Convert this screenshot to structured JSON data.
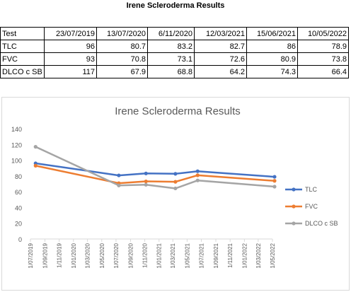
{
  "sheet": {
    "title": "Irene Scleroderma Results",
    "header": [
      "Test",
      "23/07/2019",
      "13/07/2020",
      "6/11/2020",
      "12/03/2021",
      "15/06/2021",
      "10/05/2022"
    ],
    "rows": [
      {
        "label": "TLC",
        "values": [
          "96",
          "80.7",
          "83.2",
          "82.7",
          "86",
          "78.9"
        ]
      },
      {
        "label": "FVC",
        "values": [
          "93",
          "70.8",
          "73.1",
          "72.6",
          "80.9",
          "73.8"
        ]
      },
      {
        "label": "DLCO c SB",
        "values": [
          "117",
          "67.9",
          "68.8",
          "64.2",
          "74.3",
          "66.4"
        ]
      }
    ]
  },
  "chart_data": {
    "type": "line",
    "title": "Irene Scleroderma Results",
    "xlabel": "",
    "ylabel": "",
    "x_axis_type": "date",
    "x": [
      "2019-07-23",
      "2020-07-13",
      "2020-11-06",
      "2021-03-12",
      "2021-06-15",
      "2022-05-10"
    ],
    "xlim": [
      "2019-07-01",
      "2022-05-01"
    ],
    "x_ticks": [
      "1/07/2019",
      "1/09/2019",
      "1/11/2019",
      "1/01/2020",
      "1/03/2020",
      "1/05/2020",
      "1/07/2020",
      "1/09/2020",
      "1/11/2020",
      "1/01/2021",
      "1/03/2021",
      "1/05/2021",
      "1/07/2021",
      "1/09/2021",
      "1/11/2021",
      "1/01/2022",
      "1/03/2022",
      "1/05/2022"
    ],
    "ylim": [
      0,
      140
    ],
    "y_ticks": [
      0,
      20,
      40,
      60,
      80,
      100,
      120,
      140
    ],
    "grid": false,
    "legend_position": "right",
    "series": [
      {
        "name": "TLC",
        "color": "#4472c4",
        "values": [
          96,
          80.7,
          83.2,
          82.7,
          86,
          78.9
        ]
      },
      {
        "name": "FVC",
        "color": "#ed7d31",
        "values": [
          93,
          70.8,
          73.1,
          72.6,
          80.9,
          73.8
        ]
      },
      {
        "name": "DLCO c SB",
        "color": "#a5a5a5",
        "values": [
          117,
          67.9,
          68.8,
          64.2,
          74.3,
          66.4
        ]
      }
    ]
  }
}
